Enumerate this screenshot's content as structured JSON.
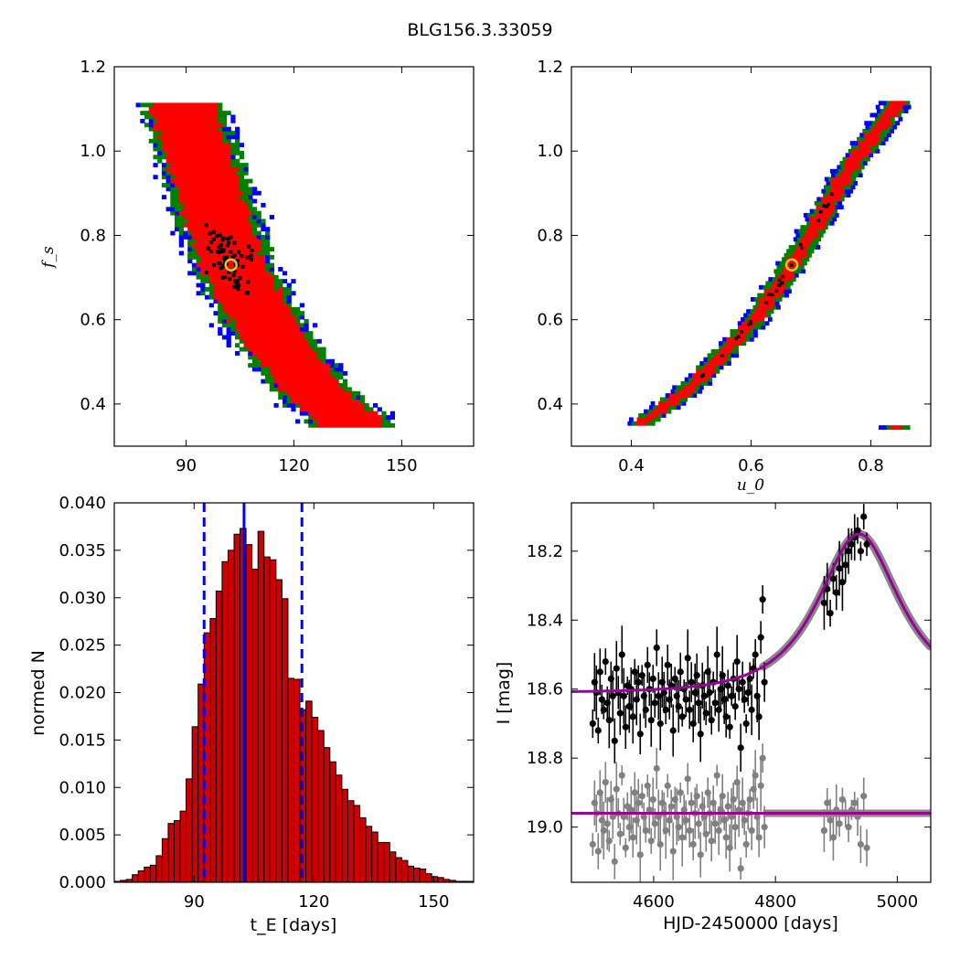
{
  "figure": {
    "title": "BLG156.3.33059"
  },
  "colors": {
    "conf_outer": "#0000ff",
    "conf_mid": "#008000",
    "conf_inner": "#ff0000",
    "samples": "#000000",
    "best_fit_marker": "#cccc33",
    "hist_fill": "#cc0000",
    "hist_lines": "#0000ff",
    "data_main": "#000000",
    "data_residual": "#808080",
    "model": "#990099",
    "model_band": "#888888"
  },
  "chart_data": [
    {
      "id": "tE_fs",
      "type": "heatmap",
      "title": "",
      "xlabel": "",
      "ylabel": "f_s",
      "xlim": [
        70,
        170
      ],
      "ylim": [
        0.3,
        1.2
      ],
      "xticks": [
        "90",
        "120",
        "150"
      ],
      "yticks": [
        "0.4",
        "0.6",
        "0.8",
        "1.0",
        "1.2"
      ],
      "best_fit": {
        "x": 102.5,
        "y": 0.73
      },
      "band_centerline": [
        [
          88,
          1.11
        ],
        [
          96,
          0.9
        ],
        [
          102,
          0.73
        ],
        [
          110,
          0.6
        ],
        [
          118,
          0.5
        ],
        [
          128,
          0.4
        ],
        [
          135,
          0.36
        ]
      ],
      "band_halfwidth": [
        18,
        22,
        24,
        27
      ],
      "samples_cluster": {
        "x": 102.5,
        "y": 0.74
      }
    },
    {
      "id": "u0_fs",
      "type": "heatmap",
      "title": "",
      "xlabel": "u_0",
      "ylabel": "",
      "xlim": [
        0.3,
        0.9
      ],
      "ylim": [
        0.3,
        1.2
      ],
      "xticks": [
        "0.4",
        "0.6",
        "0.8"
      ],
      "yticks": [
        "0.4",
        "0.6",
        "0.8",
        "1.0",
        "1.2"
      ],
      "best_fit": {
        "x": 0.668,
        "y": 0.73
      },
      "band_centerline": [
        [
          0.41,
          0.345
        ],
        [
          0.5,
          0.44
        ],
        [
          0.6,
          0.59
        ],
        [
          0.668,
          0.73
        ],
        [
          0.75,
          0.93
        ],
        [
          0.84,
          1.11
        ]
      ],
      "band_halfwidth": [
        0.012,
        0.02,
        0.026,
        0.034
      ]
    },
    {
      "id": "tE_hist",
      "type": "bar",
      "title": "",
      "xlabel": "t_E [days]",
      "ylabel": "normed N",
      "xlim": [
        70,
        160
      ],
      "ylim": [
        0,
        0.04
      ],
      "xticks": [
        "90",
        "120",
        "150"
      ],
      "yticks": [
        "0.000",
        "0.005",
        "0.010",
        "0.015",
        "0.020",
        "0.025",
        "0.030",
        "0.035",
        "0.040"
      ],
      "bin_width": 1.5,
      "bin_start": 70,
      "values": [
        0.0001,
        0.0002,
        0.0003,
        0.0008,
        0.0012,
        0.0016,
        0.0018,
        0.0028,
        0.0046,
        0.0062,
        0.0065,
        0.0075,
        0.0109,
        0.0164,
        0.0209,
        0.0263,
        0.0278,
        0.0307,
        0.0338,
        0.035,
        0.0367,
        0.0373,
        0.0356,
        0.033,
        0.037,
        0.0343,
        0.034,
        0.0319,
        0.0299,
        0.0215,
        0.0214,
        0.0182,
        0.0191,
        0.0174,
        0.016,
        0.0142,
        0.0127,
        0.0113,
        0.0098,
        0.0086,
        0.0081,
        0.0068,
        0.0059,
        0.0053,
        0.0042,
        0.0042,
        0.0032,
        0.0026,
        0.0023,
        0.0017,
        0.0015,
        0.0014,
        0.0009,
        0.0006,
        0.0005,
        0.0003,
        0.0002,
        0.0001,
        0.0001,
        0.0001
      ],
      "best": 102.5,
      "lower": 92.5,
      "upper": 117
    },
    {
      "id": "lightcurve",
      "type": "scatter",
      "title": "",
      "xlabel": "HJD-2450000 [days]",
      "ylabel": "I [mag]",
      "xlim": [
        4465,
        5055
      ],
      "ylim": [
        19.16,
        18.06
      ],
      "xticks": [
        "4600",
        "4800",
        "5000"
      ],
      "yticks": [
        "18.2",
        "18.4",
        "18.6",
        "18.8",
        "19.0"
      ],
      "model": {
        "baseline": 18.61,
        "t0": 4937,
        "tE": 102.5,
        "u0": 0.668,
        "fs": 0.73
      },
      "residual_offset": 18.96,
      "series": [
        {
          "name": "",
          "x": [
            4500,
            4503,
            4506,
            4509,
            4512,
            4515,
            4518,
            4521,
            4524,
            4527,
            4530,
            4533,
            4536,
            4539,
            4542,
            4545,
            4548,
            4551,
            4554,
            4557,
            4560,
            4563,
            4566,
            4569,
            4572,
            4575,
            4578,
            4581,
            4584,
            4587,
            4590,
            4593,
            4596,
            4599,
            4602,
            4605,
            4608,
            4611,
            4614,
            4617,
            4620,
            4623,
            4626,
            4629,
            4632,
            4635,
            4638,
            4641,
            4644,
            4647,
            4650,
            4653,
            4656,
            4659,
            4662,
            4665,
            4668,
            4671,
            4674,
            4677,
            4680,
            4683,
            4686,
            4689,
            4692,
            4695,
            4698,
            4701,
            4704,
            4707,
            4710,
            4713,
            4716,
            4719,
            4722,
            4725,
            4728,
            4731,
            4734,
            4737,
            4740,
            4743,
            4746,
            4749,
            4752,
            4755,
            4758,
            4761,
            4764,
            4767,
            4770,
            4773,
            4776,
            4779,
            4782,
            4880,
            4885,
            4890,
            4895,
            4900,
            4905,
            4910,
            4915,
            4920,
            4925,
            4930,
            4935,
            4940,
            4945,
            4950
          ],
          "y": [
            18.7,
            18.58,
            18.61,
            18.72,
            18.55,
            18.63,
            18.66,
            18.52,
            18.64,
            18.69,
            18.57,
            18.62,
            18.75,
            18.54,
            18.61,
            18.67,
            18.5,
            18.62,
            18.71,
            18.59,
            18.65,
            18.6,
            18.68,
            18.55,
            18.63,
            18.58,
            18.73,
            18.56,
            18.62,
            18.66,
            18.53,
            18.6,
            18.69,
            18.57,
            18.64,
            18.48,
            18.62,
            18.7,
            18.58,
            18.61,
            18.66,
            18.53,
            18.63,
            18.59,
            18.72,
            18.57,
            18.62,
            18.65,
            18.55,
            18.68,
            18.6,
            18.63,
            18.51,
            18.66,
            18.58,
            18.7,
            18.61,
            18.56,
            18.64,
            18.73,
            18.59,
            18.62,
            18.67,
            18.55,
            18.61,
            18.69,
            18.58,
            18.64,
            18.5,
            18.66,
            18.6,
            18.56,
            18.63,
            18.68,
            18.59,
            18.71,
            18.62,
            18.57,
            18.65,
            18.52,
            18.6,
            18.77,
            18.58,
            18.63,
            18.7,
            18.61,
            18.57,
            18.66,
            18.54,
            18.5,
            18.62,
            18.68,
            18.45,
            18.34,
            18.58,
            18.35,
            18.31,
            18.38,
            18.28,
            18.32,
            18.25,
            18.29,
            18.24,
            18.2,
            18.18,
            18.16,
            18.14,
            18.2,
            18.1,
            18.18
          ]
        },
        {
          "name": "",
          "x": [
            4500,
            4503,
            4506,
            4509,
            4512,
            4515,
            4518,
            4521,
            4524,
            4527,
            4530,
            4533,
            4536,
            4539,
            4542,
            4545,
            4548,
            4551,
            4554,
            4557,
            4560,
            4563,
            4566,
            4569,
            4572,
            4575,
            4578,
            4581,
            4584,
            4587,
            4590,
            4593,
            4596,
            4599,
            4602,
            4605,
            4608,
            4611,
            4614,
            4617,
            4620,
            4623,
            4626,
            4629,
            4632,
            4635,
            4638,
            4641,
            4644,
            4647,
            4650,
            4653,
            4656,
            4659,
            4662,
            4665,
            4668,
            4671,
            4674,
            4677,
            4680,
            4683,
            4686,
            4689,
            4692,
            4695,
            4698,
            4701,
            4704,
            4707,
            4710,
            4713,
            4716,
            4719,
            4722,
            4725,
            4728,
            4731,
            4734,
            4737,
            4740,
            4743,
            4746,
            4749,
            4752,
            4755,
            4758,
            4761,
            4764,
            4767,
            4770,
            4773,
            4776,
            4779,
            4782,
            4880,
            4885,
            4890,
            4895,
            4900,
            4905,
            4910,
            4915,
            4920,
            4925,
            4930,
            4935,
            4940,
            4945,
            4950
          ],
          "y": [
            19.05,
            18.93,
            18.96,
            19.07,
            18.9,
            18.98,
            19.01,
            18.87,
            18.99,
            19.04,
            18.92,
            18.97,
            19.1,
            18.89,
            18.96,
            19.02,
            18.85,
            18.97,
            19.06,
            18.94,
            19.0,
            18.95,
            19.03,
            18.9,
            18.98,
            18.93,
            19.08,
            18.91,
            18.97,
            19.01,
            18.88,
            18.95,
            19.04,
            18.92,
            18.99,
            18.83,
            18.97,
            19.05,
            18.93,
            18.96,
            19.01,
            18.88,
            18.98,
            18.94,
            19.07,
            18.92,
            18.97,
            19.0,
            18.9,
            19.03,
            18.95,
            18.98,
            18.86,
            19.01,
            18.93,
            19.05,
            18.96,
            18.91,
            18.99,
            19.08,
            18.94,
            18.97,
            19.02,
            18.9,
            18.96,
            19.04,
            18.93,
            18.99,
            18.85,
            19.01,
            18.95,
            18.91,
            18.98,
            19.03,
            18.94,
            19.06,
            18.97,
            18.92,
            19.0,
            18.87,
            18.95,
            19.12,
            18.93,
            18.98,
            19.05,
            18.96,
            18.92,
            19.01,
            18.89,
            18.85,
            18.97,
            19.03,
            18.88,
            18.8,
            19.0,
            19.01,
            18.93,
            18.98,
            19.03,
            18.95,
            18.99,
            18.92,
            18.96,
            19.0,
            18.95,
            18.93,
            18.97,
            19.05,
            18.91,
            19.06
          ]
        }
      ]
    }
  ]
}
